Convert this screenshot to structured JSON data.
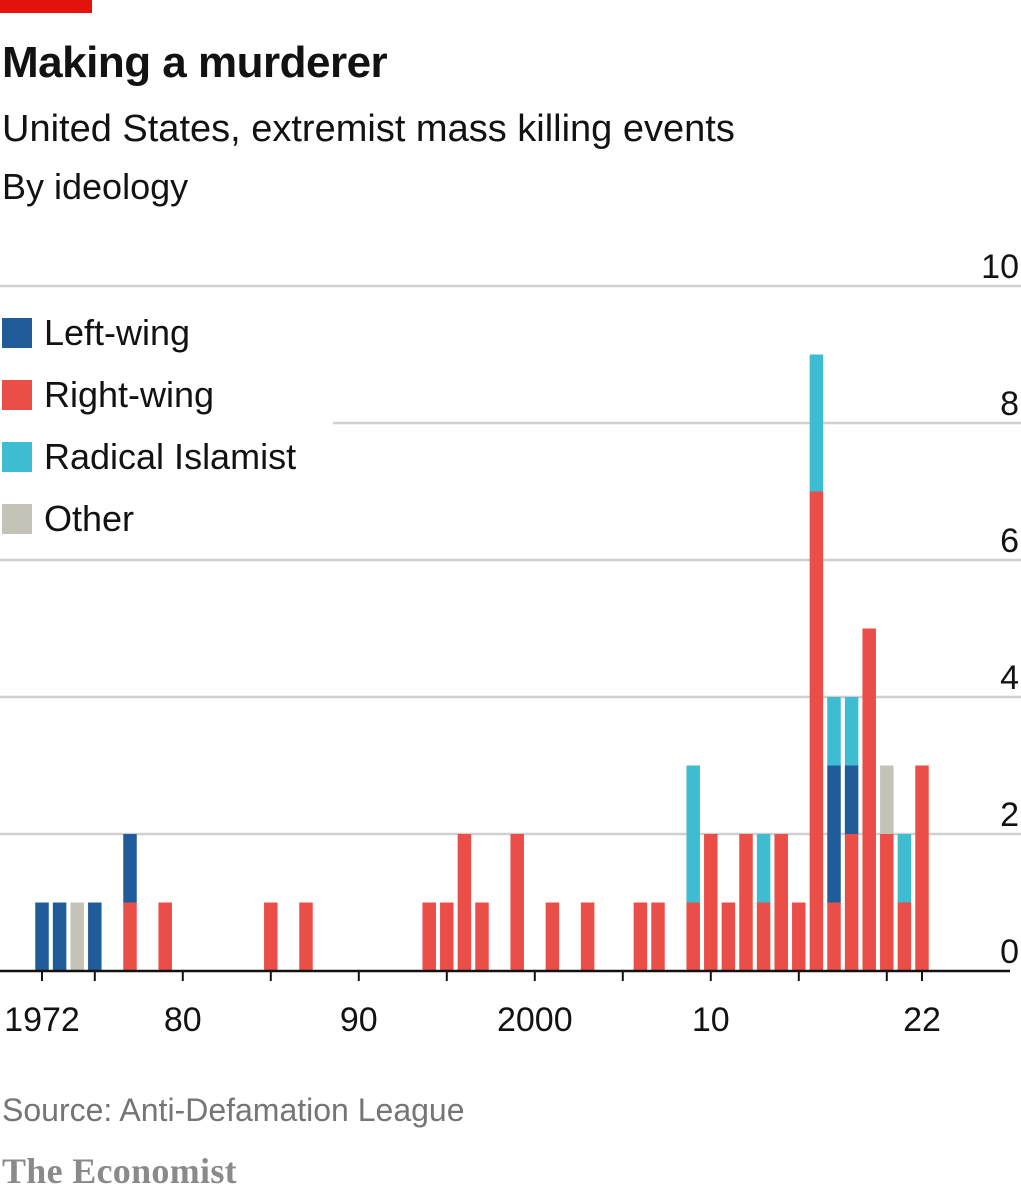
{
  "header": {
    "title": "Making a murderer",
    "subtitle": "United States, extremist mass killing events",
    "subsubtitle": "By ideology"
  },
  "colors": {
    "accent": "#e3120b",
    "left_wing": "#1f5c99",
    "right_wing": "#eb4e46",
    "radical_islamist": "#3ebcd2",
    "other": "#c3c3b8",
    "grid": "#d0d0d0",
    "axis": "#121212"
  },
  "legend": {
    "items": [
      {
        "label": "Left-wing",
        "color": "#1f5c99"
      },
      {
        "label": "Right-wing",
        "color": "#eb4e46"
      },
      {
        "label": "Radical Islamist",
        "color": "#3ebcd2"
      },
      {
        "label": "Other",
        "color": "#c3c3b8"
      }
    ]
  },
  "chart_data": {
    "type": "bar",
    "stacked": true,
    "title": "United States, extremist mass killing events",
    "subtitle": "By ideology",
    "xlabel": "",
    "ylabel": "",
    "xlim": [
      1972,
      2022
    ],
    "ylim": [
      0,
      10
    ],
    "y_ticks": [
      0,
      2,
      4,
      6,
      8,
      10
    ],
    "x_tick_labels": [
      {
        "year": 1972,
        "label": "1972"
      },
      {
        "year": 1980,
        "label": "80"
      },
      {
        "year": 1990,
        "label": "90"
      },
      {
        "year": 2000,
        "label": "2000"
      },
      {
        "year": 2010,
        "label": "10"
      },
      {
        "year": 2022,
        "label": "22"
      }
    ],
    "grid": true,
    "legend_position": "top-left",
    "years": [
      1972,
      1973,
      1974,
      1975,
      1976,
      1977,
      1978,
      1979,
      1980,
      1981,
      1982,
      1983,
      1984,
      1985,
      1986,
      1987,
      1988,
      1989,
      1990,
      1991,
      1992,
      1993,
      1994,
      1995,
      1996,
      1997,
      1998,
      1999,
      2000,
      2001,
      2002,
      2003,
      2004,
      2005,
      2006,
      2007,
      2008,
      2009,
      2010,
      2011,
      2012,
      2013,
      2014,
      2015,
      2016,
      2017,
      2018,
      2019,
      2020,
      2021,
      2022
    ],
    "series": [
      {
        "name": "Right-wing",
        "values": [
          0,
          0,
          0,
          0,
          0,
          1,
          0,
          1,
          0,
          0,
          0,
          0,
          0,
          1,
          0,
          1,
          0,
          0,
          0,
          0,
          0,
          0,
          1,
          1,
          2,
          1,
          0,
          2,
          0,
          1,
          0,
          1,
          0,
          0,
          1,
          1,
          0,
          1,
          2,
          1,
          2,
          1,
          2,
          1,
          7,
          1,
          2,
          5,
          2,
          1,
          3
        ]
      },
      {
        "name": "Left-wing",
        "values": [
          1,
          1,
          0,
          1,
          0,
          1,
          0,
          0,
          0,
          0,
          0,
          0,
          0,
          0,
          0,
          0,
          0,
          0,
          0,
          0,
          0,
          0,
          0,
          0,
          0,
          0,
          0,
          0,
          0,
          0,
          0,
          0,
          0,
          0,
          0,
          0,
          0,
          0,
          0,
          0,
          0,
          0,
          0,
          0,
          0,
          2,
          1,
          0,
          0,
          0,
          0
        ]
      },
      {
        "name": "Radical Islamist",
        "values": [
          0,
          0,
          0,
          0,
          0,
          0,
          0,
          0,
          0,
          0,
          0,
          0,
          0,
          0,
          0,
          0,
          0,
          0,
          0,
          0,
          0,
          0,
          0,
          0,
          0,
          0,
          0,
          0,
          0,
          0,
          0,
          0,
          0,
          0,
          0,
          0,
          0,
          2,
          0,
          0,
          0,
          1,
          0,
          0,
          2,
          1,
          1,
          0,
          0,
          1,
          0
        ]
      },
      {
        "name": "Other",
        "values": [
          0,
          0,
          1,
          0,
          0,
          0,
          0,
          0,
          0,
          0,
          0,
          0,
          0,
          0,
          0,
          0,
          0,
          0,
          0,
          0,
          0,
          0,
          0,
          0,
          0,
          0,
          0,
          0,
          0,
          0,
          0,
          0,
          0,
          0,
          0,
          0,
          0,
          0,
          0,
          0,
          0,
          0,
          0,
          0,
          0,
          0,
          0,
          0,
          1,
          0,
          0
        ]
      }
    ]
  },
  "footer": {
    "source": "Source: Anti-Defamation League",
    "brand": "The Economist"
  }
}
